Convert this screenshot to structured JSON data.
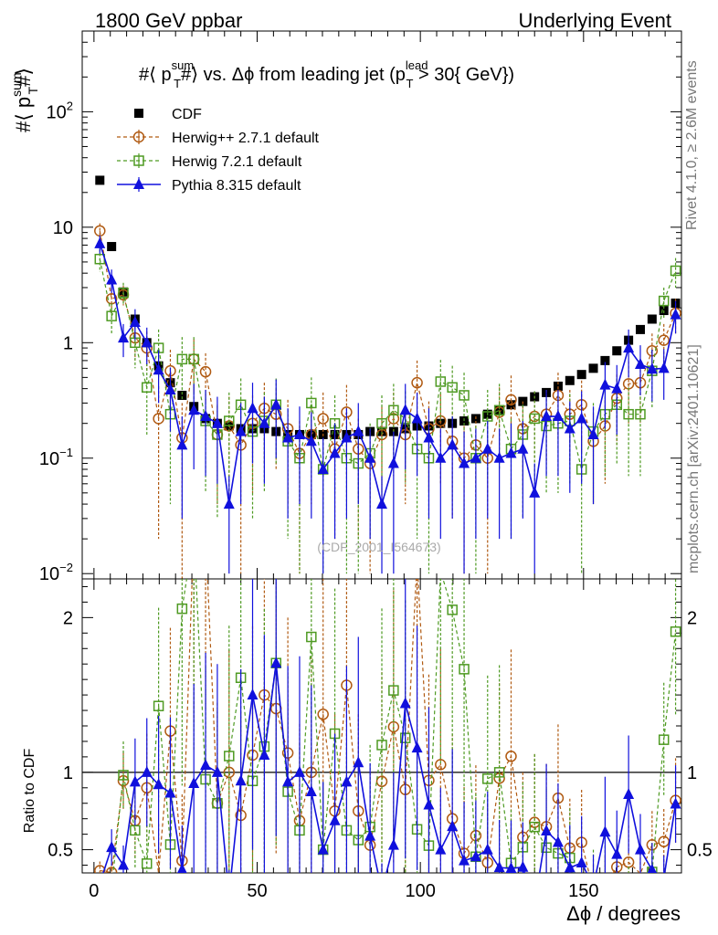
{
  "header": {
    "left": "1800 GeV ppbar",
    "right": "Underlying Event"
  },
  "side_labels": {
    "rivet": "Rivet 4.1.0, ≥ 2.6M events",
    "mcplots": "mcplots.cern.ch [arXiv:2401.10621]"
  },
  "watermark": "(CDF_2001_I564673)",
  "chart_data": {
    "type": "scatter",
    "title": "#⟨ p_T^sum #⟩ vs. Δϕ from leading jet  (p_T^lead > 30{ GeV})",
    "title_parts": {
      "prefix": "#⟨ p",
      "sup1": "sum",
      "sub1": "T",
      "mid": "#⟩ vs. Δϕ from leading jet  (p",
      "sup2": "lead",
      "sub2": "T",
      "suffix": " > 30{ GeV})"
    },
    "xlabel": "Δϕ / degrees",
    "ylabel_main": "#⟨ p_T^sum#⟩",
    "ylabel_parts": {
      "prefix": "#⟨ p",
      "sup": "sum",
      "sub": "T",
      "suffix": "#⟩"
    },
    "ylabel_ratio": "Ratio to CDF",
    "xlim": [
      -3.6,
      180
    ],
    "ylim_main": [
      0.009,
      500
    ],
    "yscale_main": "log",
    "ylim_ratio": [
      0.35,
      2.25
    ],
    "x_ticks": [
      "0",
      "50",
      "100",
      "150"
    ],
    "y_ticks_main": [
      {
        "v": 0.01,
        "label": "10",
        "exp": "−2"
      },
      {
        "v": 0.1,
        "label": "10",
        "exp": "−1"
      },
      {
        "v": 1,
        "label": "1",
        "exp": ""
      },
      {
        "v": 10,
        "label": "10",
        "exp": ""
      },
      {
        "v": 100,
        "label": "10",
        "exp": "2"
      }
    ],
    "y_ticks_ratio": [
      "0.5",
      "1",
      "2"
    ],
    "legend_position": "top-left",
    "x": [
      1.8,
      5.4,
      9.0,
      12.6,
      16.2,
      19.8,
      23.4,
      27.0,
      30.6,
      34.2,
      37.8,
      41.4,
      45.0,
      48.6,
      52.2,
      55.8,
      59.4,
      63.0,
      66.6,
      70.2,
      73.8,
      77.4,
      81.0,
      84.6,
      88.2,
      91.8,
      95.4,
      99.0,
      102.6,
      106.2,
      109.8,
      113.4,
      117.0,
      120.6,
      124.2,
      127.8,
      131.4,
      135.0,
      138.6,
      142.2,
      145.8,
      149.4,
      153.0,
      156.6,
      160.2,
      163.8,
      167.4,
      171.0,
      174.6,
      178.2
    ],
    "series": [
      {
        "name": "CDF",
        "color": "#000000",
        "marker": "filled-square",
        "values": [
          25.5,
          6.8,
          2.75,
          1.6,
          1.0,
          0.63,
          0.45,
          0.35,
          0.28,
          0.22,
          0.2,
          0.19,
          0.18,
          0.18,
          0.18,
          0.17,
          0.16,
          0.16,
          0.16,
          0.16,
          0.16,
          0.16,
          0.16,
          0.17,
          0.17,
          0.17,
          0.18,
          0.19,
          0.19,
          0.2,
          0.2,
          0.21,
          0.22,
          0.24,
          0.26,
          0.29,
          0.31,
          0.34,
          0.37,
          0.42,
          0.47,
          0.53,
          0.6,
          0.7,
          0.85,
          1.05,
          1.3,
          1.6,
          1.9,
          2.2
        ],
        "errors": [
          0.8,
          0.3,
          0.15,
          0.08,
          0.05,
          0.03,
          0.02,
          0.02,
          0.015,
          0.01,
          0.01,
          0.01,
          0.01,
          0.01,
          0.01,
          0.01,
          0.01,
          0.01,
          0.01,
          0.01,
          0.01,
          0.01,
          0.01,
          0.01,
          0.01,
          0.01,
          0.01,
          0.01,
          0.01,
          0.01,
          0.01,
          0.01,
          0.01,
          0.01,
          0.01,
          0.015,
          0.015,
          0.015,
          0.02,
          0.02,
          0.02,
          0.03,
          0.03,
          0.03,
          0.04,
          0.05,
          0.06,
          0.08,
          0.1,
          0.12
        ]
      },
      {
        "name": "Herwig++ 2.7.1 default",
        "color": "#b05a12",
        "marker": "open-circle",
        "line": "dashed",
        "values": [
          9.3,
          2.4,
          2.6,
          1.1,
          0.9,
          0.22,
          0.57,
          0.15,
          0.72,
          0.56,
          0.16,
          0.19,
          0.13,
          0.2,
          0.27,
          0.24,
          0.18,
          0.11,
          0.16,
          0.22,
          0.12,
          0.25,
          0.12,
          0.09,
          0.16,
          0.22,
          0.16,
          0.45,
          0.18,
          0.21,
          0.14,
          0.1,
          0.13,
          0.1,
          0.25,
          0.32,
          0.18,
          0.23,
          0.24,
          0.35,
          0.24,
          0.29,
          0.14,
          0.19,
          0.33,
          0.44,
          0.45,
          0.85,
          1.05,
          1.8
        ],
        "errors": [
          1.5,
          0.6,
          0.5,
          0.4,
          0.35,
          0.2,
          0.3,
          0.15,
          0.35,
          0.25,
          0.12,
          0.15,
          0.12,
          0.15,
          0.18,
          0.16,
          0.14,
          0.1,
          0.12,
          0.15,
          0.1,
          0.18,
          0.1,
          0.08,
          0.12,
          0.15,
          0.12,
          0.25,
          0.13,
          0.15,
          0.11,
          0.09,
          0.1,
          0.09,
          0.16,
          0.2,
          0.13,
          0.15,
          0.15,
          0.2,
          0.15,
          0.18,
          0.1,
          0.13,
          0.2,
          0.25,
          0.25,
          0.35,
          0.4,
          0.6
        ]
      },
      {
        "name": "Herwig 7.2.1 default",
        "color": "#4e9a22",
        "marker": "open-square",
        "line": "dashed",
        "values": [
          5.3,
          1.7,
          2.7,
          1.0,
          0.41,
          0.9,
          0.24,
          0.72,
          0.72,
          0.21,
          0.16,
          0.21,
          0.29,
          0.17,
          0.21,
          0.29,
          0.14,
          0.1,
          0.3,
          0.08,
          0.2,
          0.1,
          0.09,
          0.11,
          0.2,
          0.26,
          0.22,
          0.12,
          0.1,
          0.46,
          0.41,
          0.35,
          0.1,
          0.23,
          0.26,
          0.12,
          0.16,
          0.22,
          0.19,
          0.2,
          0.21,
          0.08,
          0.17,
          0.24,
          0.29,
          0.24,
          0.24,
          0.57,
          2.3,
          4.2
        ],
        "errors": [
          1.2,
          0.5,
          0.6,
          0.4,
          0.25,
          0.4,
          0.2,
          0.4,
          0.4,
          0.16,
          0.13,
          0.16,
          0.2,
          0.14,
          0.16,
          0.2,
          0.12,
          0.09,
          0.2,
          0.07,
          0.15,
          0.09,
          0.08,
          0.09,
          0.15,
          0.18,
          0.16,
          0.1,
          0.09,
          0.25,
          0.22,
          0.2,
          0.09,
          0.16,
          0.18,
          0.1,
          0.13,
          0.16,
          0.14,
          0.15,
          0.15,
          0.07,
          0.13,
          0.17,
          0.2,
          0.17,
          0.17,
          0.3,
          0.7,
          1.2
        ]
      },
      {
        "name": "Pythia 8.315 default",
        "color": "#1010dd",
        "marker": "filled-triangle",
        "line": "solid",
        "values": [
          7.2,
          3.5,
          1.1,
          1.5,
          1.0,
          0.58,
          0.39,
          0.13,
          0.26,
          0.23,
          0.2,
          0.04,
          0.17,
          0.27,
          0.2,
          0.29,
          0.15,
          0.16,
          0.14,
          0.08,
          0.11,
          0.15,
          0.17,
          0.1,
          0.04,
          0.09,
          0.26,
          0.22,
          0.15,
          0.1,
          0.13,
          0.09,
          0.1,
          0.12,
          0.1,
          0.11,
          0.12,
          0.05,
          0.23,
          0.23,
          0.18,
          0.22,
          0.16,
          0.43,
          0.4,
          0.9,
          0.65,
          0.59,
          0.6,
          1.75
        ],
        "errors": [
          1.3,
          0.8,
          0.35,
          0.45,
          0.35,
          0.28,
          0.22,
          0.1,
          0.18,
          0.16,
          0.14,
          0.03,
          0.13,
          0.18,
          0.14,
          0.19,
          0.12,
          0.12,
          0.11,
          0.07,
          0.09,
          0.12,
          0.13,
          0.08,
          0.03,
          0.08,
          0.18,
          0.15,
          0.12,
          0.08,
          0.1,
          0.08,
          0.08,
          0.09,
          0.08,
          0.09,
          0.09,
          0.04,
          0.16,
          0.16,
          0.13,
          0.16,
          0.12,
          0.25,
          0.24,
          0.4,
          0.3,
          0.28,
          0.28,
          0.55
        ]
      }
    ]
  }
}
